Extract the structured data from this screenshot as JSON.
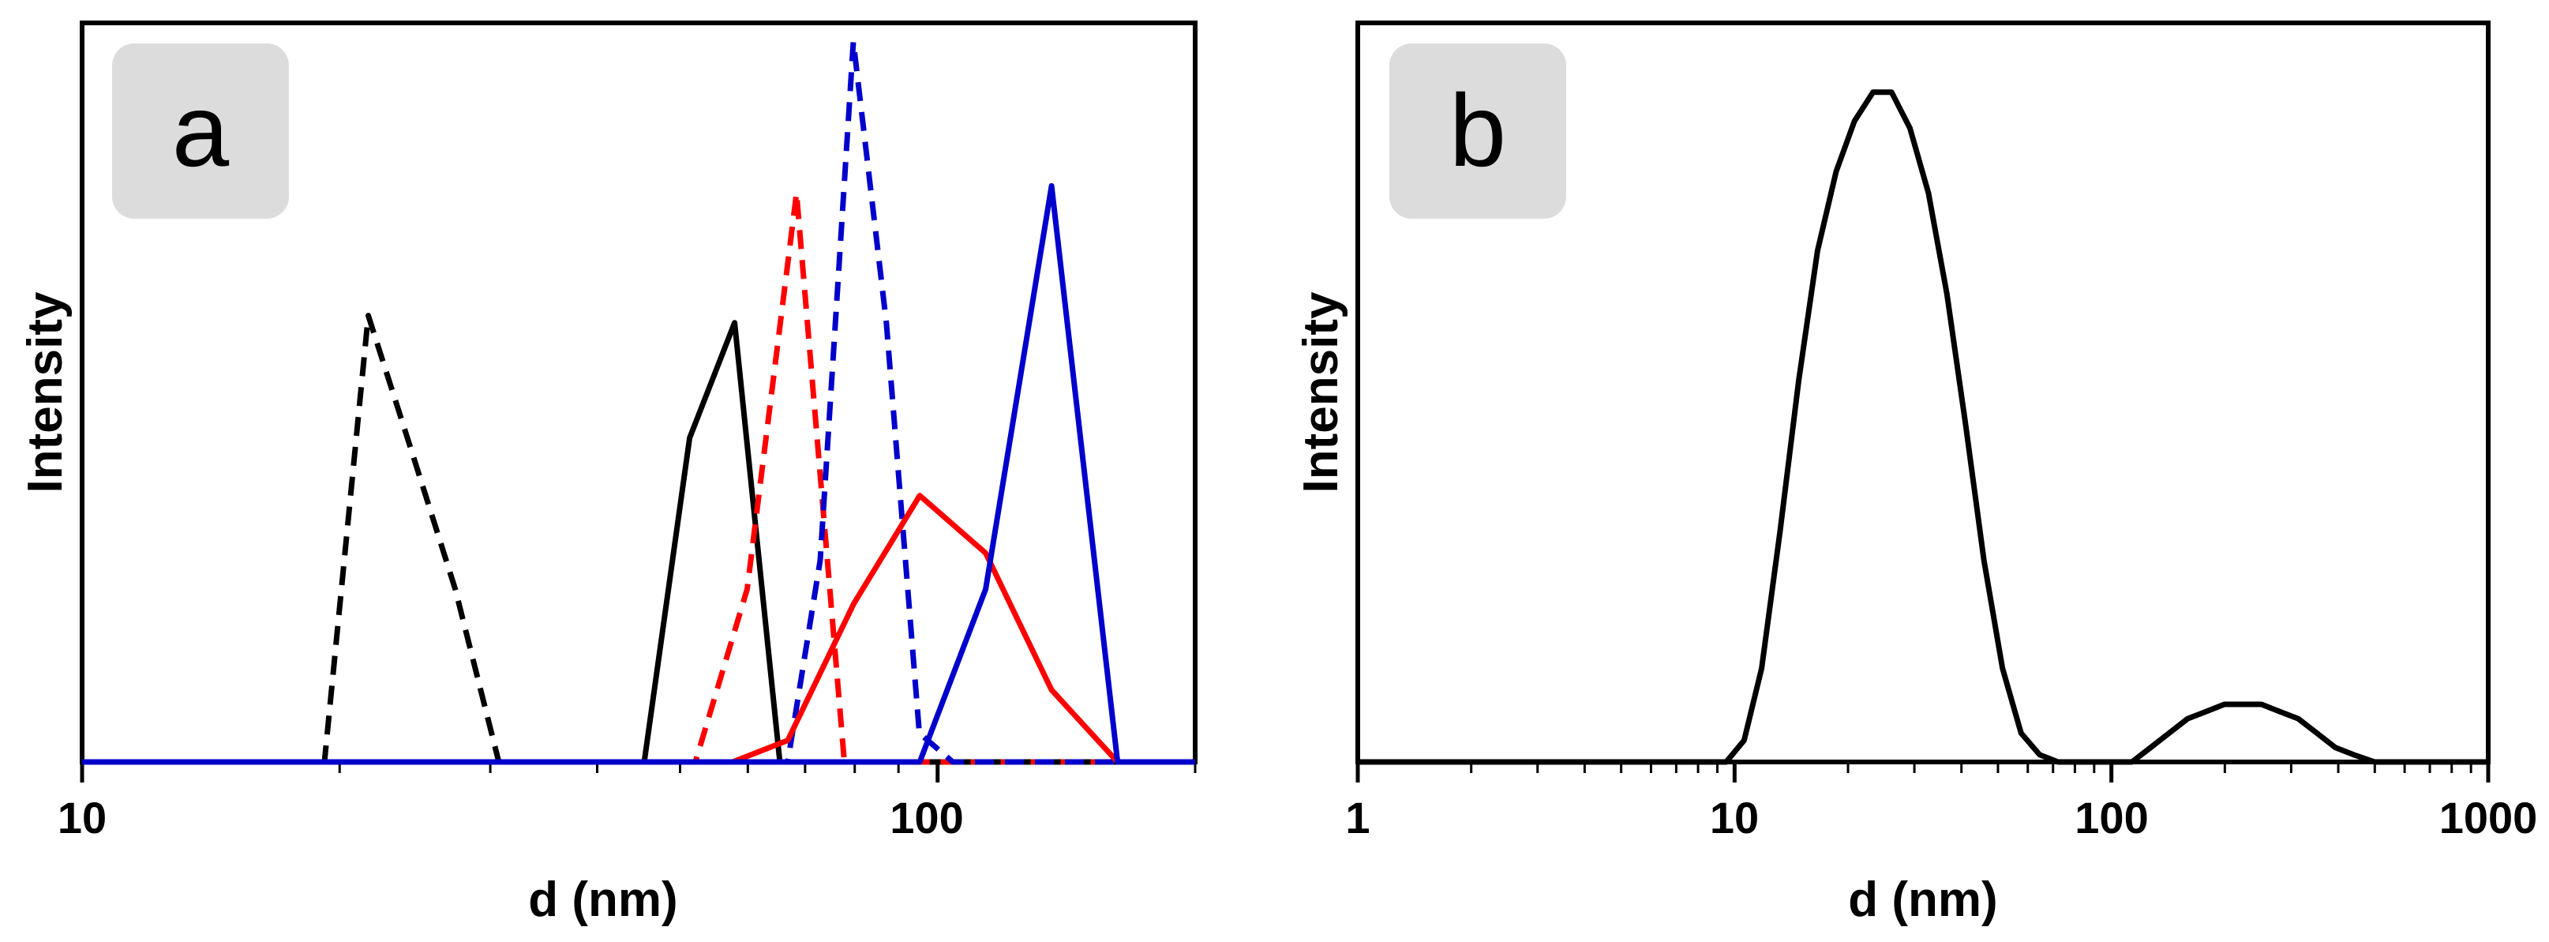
{
  "chart_data": [
    {
      "panel": "a",
      "type": "line",
      "title": "",
      "xlabel": "d (nm)",
      "ylabel": "Intensity",
      "xscale": "log",
      "xlim": [
        10,
        200
      ],
      "ylim": [
        0,
        1.0
      ],
      "x_ticks": [
        10,
        100
      ],
      "x_tick_labels": [
        "10",
        "100"
      ],
      "series": [
        {
          "name": "black-dashed",
          "color": "#000000",
          "dash": true,
          "x": [
            9,
            19.2,
            21.6,
            24.3,
            27.3,
            30.7,
            200
          ],
          "y": [
            0,
            0,
            0.62,
            0.43,
            0.24,
            0,
            0
          ]
        },
        {
          "name": "black-solid",
          "color": "#000000",
          "dash": false,
          "x": [
            9,
            45.4,
            51.3,
            57.9,
            65.4,
            200
          ],
          "y": [
            0,
            0,
            0.45,
            0.61,
            0,
            0
          ]
        },
        {
          "name": "red-dashed",
          "color": "#ff0000",
          "dash": true,
          "x": [
            9,
            52.1,
            59.9,
            68.4,
            77.8,
            200
          ],
          "y": [
            0,
            0,
            0.24,
            0.79,
            0,
            0
          ]
        },
        {
          "name": "blue-dashed",
          "color": "#0000cc",
          "dash": true,
          "x": [
            9,
            66.8,
            72.9,
            79.7,
            87.1,
            95.2,
            104.2,
            200
          ],
          "y": [
            0,
            0,
            0.28,
            1.0,
            0.61,
            0.04,
            0,
            0
          ]
        },
        {
          "name": "red-solid",
          "color": "#ff0000",
          "dash": false,
          "x": [
            9,
            57.6,
            66.8,
            79.8,
            95.3,
            113.8,
            135.9,
            162.3,
            200
          ],
          "y": [
            0,
            0,
            0.03,
            0.22,
            0.37,
            0.29,
            0.1,
            0,
            0
          ]
        },
        {
          "name": "blue-solid",
          "color": "#0000cc",
          "dash": false,
          "x": [
            9,
            95.3,
            113.8,
            135.9,
            162.3,
            200
          ],
          "y": [
            0,
            0,
            0.24,
            0.8,
            0,
            0
          ]
        }
      ]
    },
    {
      "panel": "b",
      "type": "line",
      "title": "",
      "xlabel": "d (nm)",
      "ylabel": "Intensity",
      "xscale": "log",
      "xlim": [
        1,
        1000
      ],
      "ylim": [
        0,
        1.0
      ],
      "x_ticks": [
        1,
        10,
        100,
        1000
      ],
      "x_tick_labels": [
        "1",
        "10",
        "100",
        "1000"
      ],
      "series": [
        {
          "name": "black-solid",
          "color": "#000000",
          "dash": false,
          "x": [
            1,
            9.5,
            10.6,
            11.8,
            13.2,
            14.8,
            16.6,
            18.6,
            20.8,
            23.3,
            26.1,
            29.2,
            32.7,
            36.6,
            41.0,
            45.9,
            51.4,
            57.6,
            64.5,
            72.2,
            80.8,
            90.5,
            101.3,
            113.4,
            127.0,
            142.2,
            159.2,
            178.2,
            199.5,
            223.4,
            250.1,
            280.0,
            313.5,
            351.0,
            393.0,
            440.0,
            500.0,
            1000
          ],
          "y": [
            0,
            0,
            0.03,
            0.13,
            0.32,
            0.53,
            0.71,
            0.82,
            0.89,
            0.93,
            0.93,
            0.88,
            0.79,
            0.65,
            0.47,
            0.28,
            0.13,
            0.04,
            0.01,
            0,
            0,
            0,
            0,
            0,
            0.02,
            0.04,
            0.06,
            0.07,
            0.08,
            0.08,
            0.08,
            0.07,
            0.06,
            0.04,
            0.02,
            0.01,
            0,
            0
          ]
        }
      ]
    }
  ],
  "panels": [
    {
      "letter": "a",
      "ylabel": "Intensity",
      "xlabel": "d (nm)"
    },
    {
      "letter": "b",
      "ylabel": "Intensity",
      "xlabel": "d (nm)"
    }
  ]
}
